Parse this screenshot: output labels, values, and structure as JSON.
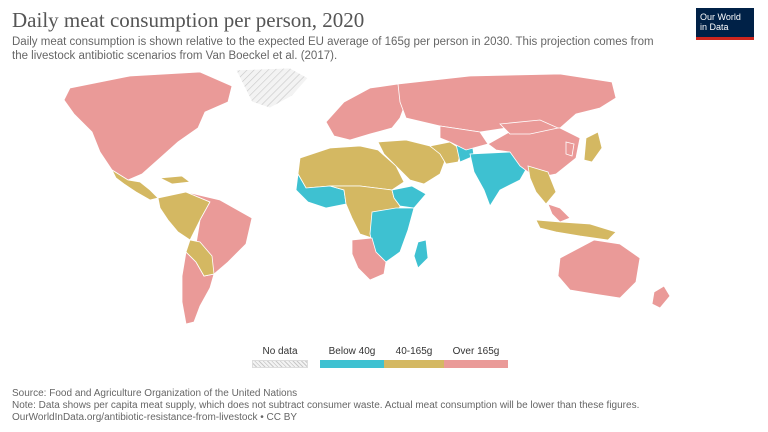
{
  "title": "Daily meat consumption per person, 2020",
  "subtitle": "Daily meat consumption is shown relative to the expected EU average of 165g per person in 2030. This projection comes from the livestock antibiotic scenarios from Van Boeckel et al. (2017).",
  "logo": {
    "line1": "Our World",
    "line2": "in Data"
  },
  "colors": {
    "below_40": "#3ec1d1",
    "mid_40_165": "#d4b862",
    "over_165": "#ea9a98",
    "no_data": "#f3f3f3",
    "ocean": "#ffffff",
    "border": "#ffffff"
  },
  "legend": {
    "no_data": "No data",
    "below_40": "Below 40g",
    "mid_40_165": "40-165g",
    "over_165": "Over 165g"
  },
  "map_data": {
    "type": "choropleth",
    "indicator": "Daily meat consumption per person, 2020",
    "regions": {
      "north_america": "Over 165g",
      "central_america": "40-165g",
      "caribbean": "40-165g",
      "south_america_northwest": "40-165g",
      "brazil": "Over 165g",
      "argentina_chile": "Over 165g",
      "bolivia_paraguay": "40-165g",
      "greenland": "No data",
      "europe": "Over 165g",
      "russia": "Over 165g",
      "north_africa": "40-165g",
      "west_africa": "Below 40g",
      "central_africa": "40-165g",
      "east_africa": "Below 40g",
      "ethiopia": "Below 40g",
      "southern_africa": "Over 165g",
      "madagascar": "Below 40g",
      "middle_east": "40-165g",
      "iran": "40-165g",
      "afghanistan": "Below 40g",
      "india": "Below 40g",
      "central_asia": "Over 165g",
      "china": "Over 165g",
      "mongolia": "Over 165g",
      "japan": "40-165g",
      "korea": "Over 165g",
      "southeast_asia": "40-165g",
      "indonesia": "40-165g",
      "malaysia": "Over 165g",
      "australia": "Over 165g",
      "new_zealand": "Over 165g"
    }
  },
  "footer": {
    "source": "Source: Food and Agriculture Organization of the United Nations",
    "note": "Note: Data shows per capita meat supply, which does not subtract consumer waste. Actual meat consumption will be lower than these figures.",
    "url": "OurWorldInData.org/antibiotic-resistance-from-livestock • CC BY"
  }
}
